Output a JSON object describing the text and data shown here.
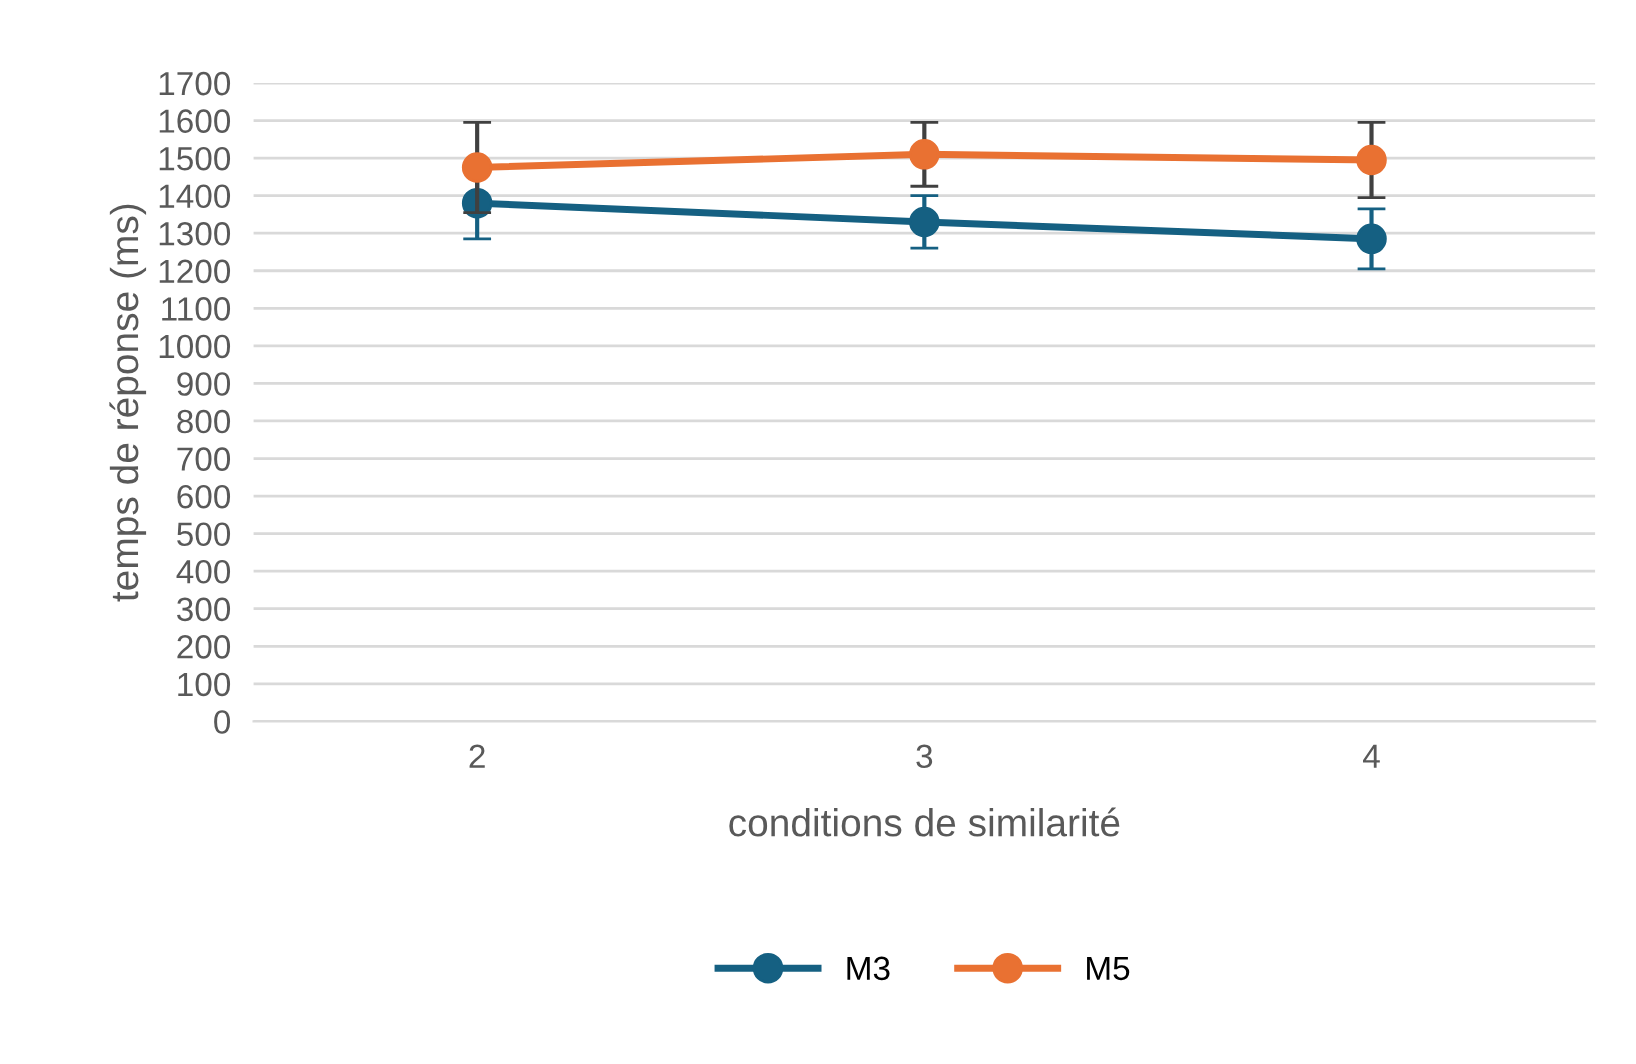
{
  "chart_data": {
    "type": "line",
    "xlabel": "conditions de similarité",
    "ylabel": "temps de réponse (ms)",
    "categories": [
      "2",
      "3",
      "4"
    ],
    "series": [
      {
        "name": "M3",
        "color": "#156082",
        "values": [
          1380,
          1330,
          1285
        ],
        "errors": [
          95,
          70,
          80
        ]
      },
      {
        "name": "M5",
        "color": "#e97132",
        "values": [
          1475,
          1510,
          1495
        ],
        "errors": [
          120,
          85,
          100
        ]
      }
    ],
    "ylim": [
      0,
      1700
    ],
    "yticks": [
      0,
      100,
      200,
      300,
      400,
      500,
      600,
      700,
      800,
      900,
      1000,
      1100,
      1200,
      1300,
      1400,
      1500,
      1600,
      1700
    ],
    "grid": "y",
    "legend": "bottom",
    "marker": "circle",
    "line_style": "solid"
  }
}
